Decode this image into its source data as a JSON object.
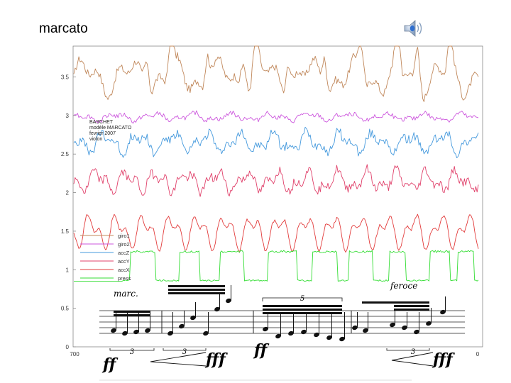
{
  "slide": {
    "title": "marcato"
  },
  "icons": {
    "audio": "speaker-icon"
  },
  "chart_data": {
    "type": "line",
    "title": "",
    "xlabel": "",
    "ylabel": "",
    "xlim": [
      700,
      0
    ],
    "ylim": [
      0,
      3.9
    ],
    "x_ticks": [
      "700",
      "0"
    ],
    "y_ticks": [
      {
        "value": 0,
        "label": "0"
      },
      {
        "value": 0.5,
        "label": "0.5"
      },
      {
        "value": 1,
        "label": "1"
      },
      {
        "value": 1.5,
        "label": "1.5"
      },
      {
        "value": 2,
        "label": "2"
      },
      {
        "value": 2.5,
        "label": "2.5"
      },
      {
        "value": 3,
        "label": "3"
      },
      {
        "value": 3.5,
        "label": "3.5"
      }
    ],
    "annotation": [
      "BASCHET",
      "modèle MARCATO",
      "fevrier 2007",
      "violon"
    ],
    "legend_position": "lower-left",
    "series": [
      {
        "name": "giro1",
        "color": "#c0875a",
        "base": 3.5,
        "amp": 0.28,
        "noise": 0.05,
        "peaks": [
          0.18,
          0.24,
          0.33,
          0.42,
          0.45,
          0.53,
          0.62,
          0.71,
          0.8,
          0.85,
          0.93
        ]
      },
      {
        "name": "giro2",
        "color": "#cc55dd",
        "base": 2.98,
        "amp": 0.06,
        "noise": 0.03,
        "peaks": []
      },
      {
        "name": "accZ",
        "color": "#4499dd",
        "base": 2.65,
        "amp": 0.16,
        "noise": 0.06,
        "peaks": []
      },
      {
        "name": "accY",
        "color": "#e0406a",
        "base": 2.15,
        "amp": 0.16,
        "noise": 0.06,
        "peaks": []
      },
      {
        "name": "accX",
        "color": "#e23b3b",
        "base": 1.5,
        "amp": 0.26,
        "noise": 0.02,
        "peaks": []
      },
      {
        "name": "press",
        "color": "#33dd33",
        "base": 0.9,
        "high": 1.25,
        "low": 0.85,
        "pulses": [
          [
            0.14,
            0.2
          ],
          [
            0.26,
            0.31
          ],
          [
            0.36,
            0.42
          ],
          [
            0.48,
            0.55
          ],
          [
            0.59,
            0.65
          ],
          [
            0.68,
            0.74
          ],
          [
            0.78,
            0.82
          ],
          [
            0.88,
            0.93
          ],
          [
            0.95,
            0.99
          ]
        ]
      }
    ]
  },
  "score": {
    "dynamics": [
      "ff",
      "fff",
      "ff",
      "fff"
    ],
    "expressions": [
      "marc.",
      "feroce"
    ],
    "tuplets": [
      "3",
      "3",
      "5",
      "3"
    ]
  }
}
